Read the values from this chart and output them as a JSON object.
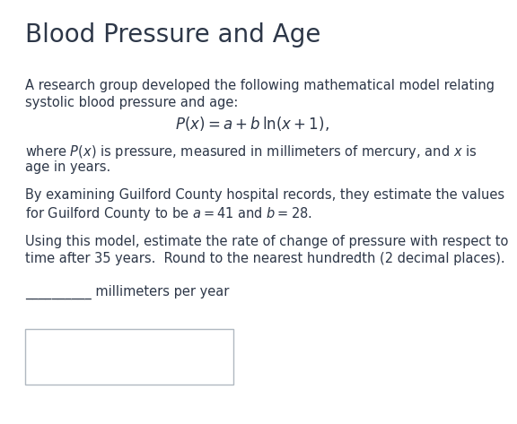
{
  "title": "Blood Pressure and Age",
  "bg_color": "#ffffff",
  "text_color": "#2d3748",
  "title_color": "#2d3748",
  "body_fontsize": 10.5,
  "title_fontsize": 20,
  "para1_line1": "A research group developed the following mathematical model relating",
  "para1_line2": "systolic blood pressure and age:",
  "formula": "$P(x) = a + b\\,\\ln(x + 1),$",
  "para2_line1": "where $P(x)$ is pressure, measured in millimeters of mercury, and $x$ is",
  "para2_line2": "age in years.",
  "para3_line1": "By examining Guilford County hospital records, they estimate the values",
  "para3_line2": "for Guilford County to be $a = 41$ and $b = 28$.",
  "para4_line1": "Using this model, estimate the rate of change of pressure with respect to",
  "para4_line2": "time after 35 years.  Round to the nearest hundredth (2 decimal places).",
  "blank_label": "__________ millimeters per year"
}
